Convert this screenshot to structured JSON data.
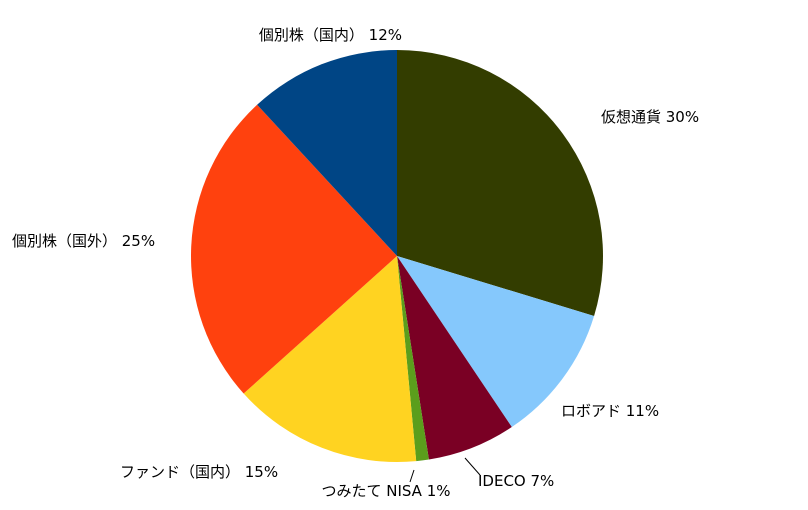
{
  "chart_data": {
    "type": "pie",
    "title": "",
    "legend": "none",
    "start_angle_deg": 0,
    "direction": "clockwise",
    "slices": [
      {
        "label": "仮想通貨",
        "value": 30,
        "display": "仮想通貨  30%",
        "color": "#333d00"
      },
      {
        "label": "ロボアド",
        "value": 11,
        "display": "ロボアド  11%",
        "color": "#85c8fc"
      },
      {
        "label": "IDECO",
        "value": 7,
        "display": "IDECO 7%",
        "color": "#7a0024"
      },
      {
        "label": "つみたて NISA",
        "value": 1,
        "display": "つみたて NISA 1%",
        "color": "#5b9e1c"
      },
      {
        "label": "ファンド（国内）",
        "value": 15,
        "display": "ファンド（国内） 15%",
        "color": "#ffd321"
      },
      {
        "label": "個別株（国外）",
        "value": 25,
        "display": "個別株（国外） 25%",
        "color": "#ff410e"
      },
      {
        "label": "個別株（国内）",
        "value": 12,
        "display": "個別株（国内） 12%",
        "color": "#004585"
      }
    ]
  }
}
